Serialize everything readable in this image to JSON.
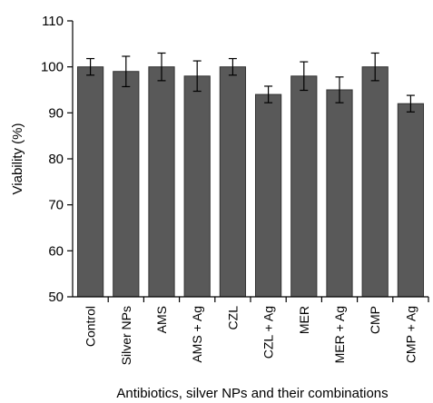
{
  "chart_data": {
    "type": "bar",
    "title": "",
    "xlabel": "Antibiotics, silver NPs and their combinations",
    "ylabel": "Viability (%)",
    "ylim": [
      50,
      110
    ],
    "yticks": [
      50,
      60,
      70,
      80,
      90,
      100,
      110
    ],
    "grid": false,
    "categories": [
      "Control",
      "Silver NPs",
      "AMS",
      "AMS + Ag",
      "CZL",
      "CZL + Ag",
      "MER",
      "MER + Ag",
      "CMP",
      "CMP + Ag"
    ],
    "series": [
      {
        "values": [
          100,
          99,
          100,
          98,
          100,
          94,
          98,
          95,
          100,
          92
        ],
        "errors": [
          1.8,
          3.3,
          3.0,
          3.3,
          1.8,
          1.8,
          3.1,
          2.8,
          3.0,
          1.8
        ]
      }
    ],
    "colors": {
      "bar": "#595959",
      "bar_edge": "#333333",
      "axis": "#000000"
    }
  }
}
